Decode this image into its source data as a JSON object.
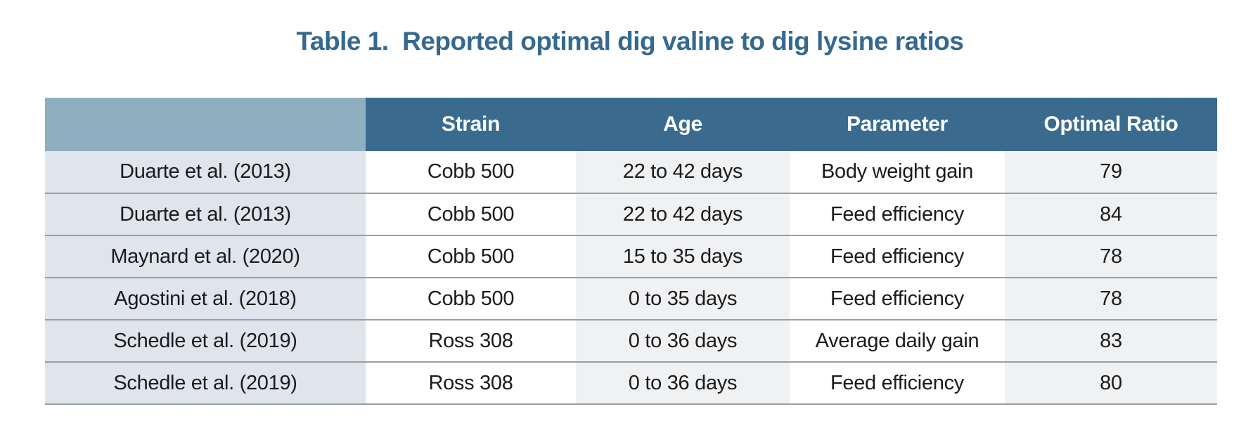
{
  "title": {
    "full": "Table 1.  Reported optimal dig valine to dig lysine ratios",
    "color": "#35698f"
  },
  "table": {
    "columns": [
      "",
      "Strain",
      "Age",
      "Parameter",
      "Optimal Ratio"
    ],
    "rows": [
      {
        "source": "Duarte et al. (2013)",
        "strain": "Cobb 500",
        "age": "22 to 42 days",
        "parameter": "Body weight gain",
        "ratio": "79"
      },
      {
        "source": "Duarte et al. (2013)",
        "strain": "Cobb 500",
        "age": "22 to 42 days",
        "parameter": "Feed efficiency",
        "ratio": "84"
      },
      {
        "source": "Maynard et al. (2020)",
        "strain": "Cobb 500",
        "age": "15 to 35 days",
        "parameter": "Feed efficiency",
        "ratio": "78"
      },
      {
        "source": "Agostini et al. (2018)",
        "strain": "Cobb 500",
        "age": "0 to 35 days",
        "parameter": "Feed efficiency",
        "ratio": "78"
      },
      {
        "source": "Schedle et al. (2019)",
        "strain": "Ross 308",
        "age": "0 to 36 days",
        "parameter": "Average daily gain",
        "ratio": "83"
      },
      {
        "source": "Schedle et al. (2019)",
        "strain": "Ross 308",
        "age": "0 to 36 days",
        "parameter": "Feed efficiency",
        "ratio": "80"
      }
    ],
    "colors": {
      "header_bg": "#3a6b8f",
      "header_corner_bg": "#8fafc1",
      "header_text": "#ffffff",
      "source_col_bg": "#dfe4ed",
      "col_white_bg": "#ffffff",
      "col_gray_bg": "#f0f1f3",
      "divider": "#9b9da1",
      "cell_text": "#1b1b1b",
      "title_text": "#35698f"
    }
  }
}
